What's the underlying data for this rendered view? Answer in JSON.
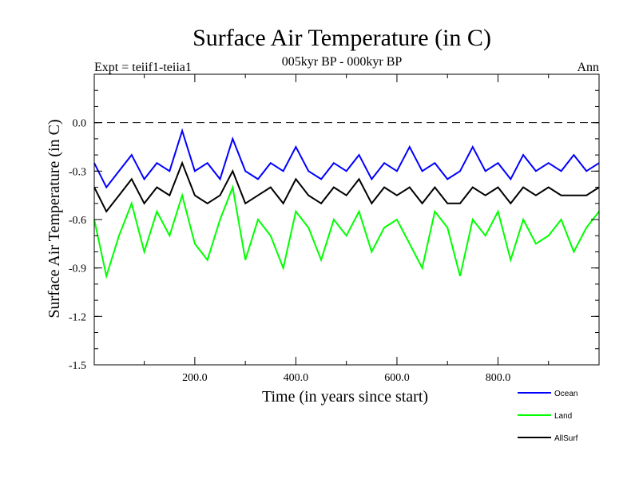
{
  "chart_data": {
    "type": "line",
    "title": "Surface Air Temperature (in C)",
    "subtitle": "005kyr BP - 000kyr BP",
    "left_label": "Expt = teiif1-teiia1",
    "right_label": "Ann",
    "xlabel": "Time (in years since start)",
    "ylabel": "Surface Air Temperature (in C)",
    "xlim": [
      1,
      1000
    ],
    "ylim": [
      -1.5,
      0.3
    ],
    "xticks": [
      200,
      400,
      600,
      800
    ],
    "xtick_labels": [
      "200.0",
      "400.0",
      "600.0",
      "800.0"
    ],
    "yticks": [
      0.0,
      -0.3,
      -0.6,
      -0.9,
      -1.2,
      -1.5
    ],
    "ytick_labels": [
      "0.0",
      "-0.3",
      "-0.6",
      "-0.9",
      "-1.2",
      "-1.5"
    ],
    "reference_line": 0.0,
    "legend_position": "bottom-right",
    "x": [
      1,
      25,
      50,
      75,
      100,
      125,
      150,
      175,
      200,
      225,
      250,
      275,
      300,
      325,
      350,
      375,
      400,
      425,
      450,
      475,
      500,
      525,
      550,
      575,
      600,
      625,
      650,
      675,
      700,
      725,
      750,
      775,
      800,
      825,
      850,
      875,
      900,
      925,
      950,
      975,
      1000
    ],
    "series": [
      {
        "name": "Ocean",
        "color": "#0000ff",
        "values": [
          -0.25,
          -0.4,
          -0.3,
          -0.2,
          -0.35,
          -0.25,
          -0.3,
          -0.05,
          -0.3,
          -0.25,
          -0.35,
          -0.1,
          -0.3,
          -0.35,
          -0.25,
          -0.3,
          -0.15,
          -0.3,
          -0.35,
          -0.25,
          -0.3,
          -0.2,
          -0.35,
          -0.25,
          -0.3,
          -0.15,
          -0.3,
          -0.25,
          -0.35,
          -0.3,
          -0.15,
          -0.3,
          -0.25,
          -0.35,
          -0.2,
          -0.3,
          -0.25,
          -0.3,
          -0.2,
          -0.3,
          -0.25
        ]
      },
      {
        "name": "Land",
        "color": "#00ff00",
        "values": [
          -0.6,
          -0.95,
          -0.7,
          -0.5,
          -0.8,
          -0.55,
          -0.7,
          -0.45,
          -0.75,
          -0.85,
          -0.6,
          -0.4,
          -0.85,
          -0.6,
          -0.7,
          -0.9,
          -0.55,
          -0.65,
          -0.85,
          -0.6,
          -0.7,
          -0.55,
          -0.8,
          -0.65,
          -0.6,
          -0.75,
          -0.9,
          -0.55,
          -0.65,
          -0.95,
          -0.6,
          -0.7,
          -0.55,
          -0.85,
          -0.6,
          -0.75,
          -0.7,
          -0.6,
          -0.8,
          -0.65,
          -0.55
        ]
      },
      {
        "name": "AllSurf",
        "color": "#000000",
        "values": [
          -0.4,
          -0.55,
          -0.45,
          -0.35,
          -0.5,
          -0.4,
          -0.45,
          -0.25,
          -0.45,
          -0.5,
          -0.45,
          -0.3,
          -0.5,
          -0.45,
          -0.4,
          -0.5,
          -0.35,
          -0.45,
          -0.5,
          -0.4,
          -0.45,
          -0.35,
          -0.5,
          -0.4,
          -0.45,
          -0.4,
          -0.5,
          -0.4,
          -0.5,
          -0.5,
          -0.4,
          -0.45,
          -0.4,
          -0.5,
          -0.4,
          -0.45,
          -0.4,
          -0.45,
          -0.45,
          -0.45,
          -0.4
        ]
      }
    ]
  }
}
